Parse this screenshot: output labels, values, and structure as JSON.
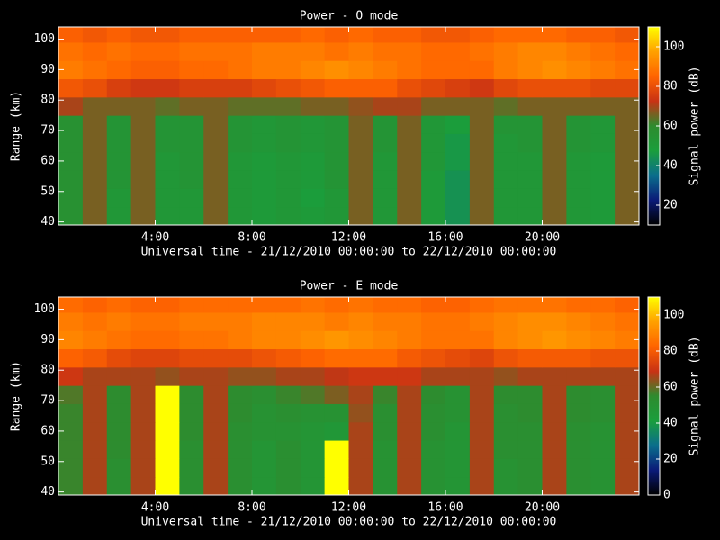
{
  "chart_data": [
    {
      "type": "heatmap",
      "title": "Power - O mode",
      "x_label": "Universal time - 21/12/2010 00:00:00 to 22/12/2010 00:00:00",
      "y_label": "Range (km)",
      "colorbar_label": "Signal power (dB)",
      "xbins": [
        0,
        1,
        2,
        3,
        4,
        5,
        6,
        7,
        8,
        9,
        10,
        11,
        12,
        13,
        14,
        15,
        16,
        17,
        18,
        19,
        20,
        21,
        22,
        23,
        24
      ],
      "ybins": [
        39,
        45,
        51,
        57,
        63,
        69,
        75,
        81,
        87,
        93,
        99,
        104
      ],
      "xlim": [
        0,
        24
      ],
      "ylim": [
        39,
        104
      ],
      "zlim": [
        10,
        110
      ],
      "xticks": [
        {
          "value": 4,
          "label": "4:00"
        },
        {
          "value": 8,
          "label": "8:00"
        },
        {
          "value": 12,
          "label": "12:00"
        },
        {
          "value": 16,
          "label": "16:00"
        },
        {
          "value": 20,
          "label": "20:00"
        }
      ],
      "yticks": [
        40,
        50,
        60,
        70,
        80,
        90,
        100
      ],
      "zticks": [
        20,
        40,
        60,
        80,
        100
      ],
      "colorscale": [
        "#000000",
        "#0a1a78",
        "#0a6e8c",
        "#1a9e3c",
        "#2e8b2e",
        "#c83214",
        "#ff6400",
        "#ffa000",
        "#ffff00"
      ],
      "z": [
        [
          56,
          66,
          52,
          66,
          52,
          52,
          66,
          52,
          50,
          52,
          50,
          52,
          66,
          52,
          66,
          50,
          44,
          66,
          52,
          52,
          66,
          52,
          50,
          66
        ],
        [
          56,
          66,
          52,
          66,
          52,
          52,
          66,
          52,
          50,
          52,
          48,
          52,
          66,
          52,
          66,
          50,
          44,
          66,
          52,
          52,
          66,
          52,
          50,
          66
        ],
        [
          56,
          66,
          54,
          66,
          52,
          54,
          66,
          52,
          50,
          52,
          50,
          54,
          66,
          52,
          66,
          50,
          44,
          66,
          52,
          52,
          66,
          52,
          50,
          66
        ],
        [
          56,
          66,
          54,
          66,
          52,
          54,
          66,
          52,
          50,
          52,
          50,
          54,
          66,
          52,
          66,
          52,
          46,
          66,
          52,
          52,
          66,
          52,
          50,
          66
        ],
        [
          56,
          66,
          54,
          66,
          54,
          54,
          66,
          54,
          52,
          54,
          52,
          54,
          66,
          54,
          66,
          52,
          46,
          66,
          52,
          54,
          66,
          54,
          52,
          66
        ],
        [
          56,
          66,
          54,
          66,
          54,
          54,
          66,
          54,
          52,
          54,
          52,
          54,
          66,
          54,
          66,
          52,
          48,
          66,
          54,
          54,
          66,
          54,
          52,
          66
        ],
        [
          70,
          66,
          66,
          66,
          64,
          66,
          66,
          64,
          64,
          64,
          66,
          66,
          68,
          70,
          70,
          66,
          66,
          66,
          64,
          66,
          66,
          66,
          66,
          66
        ],
        [
          82,
          80,
          76,
          74,
          74,
          76,
          76,
          76,
          78,
          80,
          82,
          84,
          84,
          84,
          80,
          78,
          76,
          74,
          78,
          80,
          80,
          80,
          78,
          78
        ],
        [
          90,
          88,
          86,
          84,
          84,
          86,
          86,
          88,
          90,
          90,
          92,
          94,
          92,
          90,
          88,
          86,
          86,
          86,
          90,
          92,
          94,
          92,
          90,
          88
        ],
        [
          88,
          86,
          88,
          86,
          86,
          88,
          88,
          88,
          90,
          90,
          90,
          88,
          90,
          88,
          88,
          86,
          86,
          88,
          90,
          92,
          92,
          90,
          88,
          86
        ],
        [
          84,
          82,
          84,
          82,
          82,
          84,
          84,
          84,
          84,
          84,
          86,
          84,
          86,
          84,
          84,
          82,
          82,
          84,
          86,
          86,
          86,
          84,
          84,
          82
        ]
      ]
    },
    {
      "type": "heatmap",
      "title": "Power - E mode",
      "x_label": "Universal time - 21/12/2010 00:00:00 to 22/12/2010 00:00:00",
      "y_label": "Range (km)",
      "colorbar_label": "Signal power (dB)",
      "xbins": [
        0,
        1,
        2,
        3,
        4,
        5,
        6,
        7,
        8,
        9,
        10,
        11,
        12,
        13,
        14,
        15,
        16,
        17,
        18,
        19,
        20,
        21,
        22,
        23,
        24
      ],
      "ybins": [
        39,
        45,
        51,
        57,
        63,
        69,
        75,
        81,
        87,
        93,
        99,
        104
      ],
      "xlim": [
        0,
        24
      ],
      "ylim": [
        39,
        104
      ],
      "zlim": [
        0,
        110
      ],
      "xticks": [
        {
          "value": 4,
          "label": "4:00"
        },
        {
          "value": 8,
          "label": "8:00"
        },
        {
          "value": 12,
          "label": "12:00"
        },
        {
          "value": 16,
          "label": "16:00"
        },
        {
          "value": 20,
          "label": "20:00"
        }
      ],
      "yticks": [
        40,
        50,
        60,
        70,
        80,
        90,
        100
      ],
      "zticks": [
        0,
        20,
        40,
        60,
        80,
        100
      ],
      "colorscale": [
        "#000000",
        "#0a1a78",
        "#0a6e8c",
        "#1a9e3c",
        "#2e8b2e",
        "#c83214",
        "#ff6400",
        "#ffa000",
        "#ffff00"
      ],
      "z": [
        [
          56,
          66,
          52,
          66,
          110,
          52,
          66,
          52,
          48,
          52,
          48,
          110,
          66,
          50,
          66,
          50,
          48,
          66,
          50,
          52,
          66,
          52,
          50,
          66
        ],
        [
          56,
          66,
          52,
          66,
          110,
          52,
          66,
          52,
          48,
          52,
          48,
          110,
          66,
          50,
          66,
          50,
          48,
          66,
          50,
          52,
          66,
          52,
          50,
          66
        ],
        [
          56,
          66,
          54,
          66,
          110,
          52,
          66,
          52,
          48,
          52,
          48,
          110,
          66,
          50,
          66,
          50,
          48,
          66,
          52,
          52,
          66,
          52,
          50,
          66
        ],
        [
          56,
          66,
          54,
          66,
          110,
          54,
          66,
          52,
          50,
          50,
          48,
          46,
          66,
          52,
          66,
          52,
          48,
          66,
          52,
          52,
          66,
          52,
          50,
          66
        ],
        [
          56,
          66,
          54,
          66,
          110,
          54,
          66,
          54,
          50,
          52,
          50,
          50,
          64,
          52,
          66,
          52,
          50,
          66,
          52,
          54,
          66,
          54,
          52,
          66
        ],
        [
          58,
          66,
          54,
          66,
          110,
          54,
          66,
          54,
          52,
          56,
          58,
          62,
          66,
          56,
          66,
          54,
          50,
          66,
          54,
          54,
          66,
          54,
          52,
          66
        ],
        [
          70,
          66,
          66,
          66,
          64,
          66,
          66,
          64,
          64,
          66,
          66,
          68,
          70,
          70,
          70,
          66,
          66,
          66,
          64,
          66,
          66,
          66,
          66,
          66
        ],
        [
          82,
          80,
          76,
          74,
          74,
          76,
          76,
          76,
          78,
          80,
          82,
          84,
          84,
          84,
          80,
          78,
          76,
          74,
          78,
          80,
          80,
          80,
          78,
          78
        ],
        [
          90,
          88,
          86,
          84,
          84,
          86,
          86,
          88,
          90,
          90,
          92,
          94,
          92,
          90,
          88,
          86,
          86,
          86,
          90,
          92,
          94,
          92,
          90,
          88
        ],
        [
          88,
          86,
          88,
          86,
          86,
          88,
          88,
          88,
          90,
          90,
          90,
          88,
          90,
          88,
          88,
          86,
          86,
          88,
          90,
          92,
          92,
          90,
          88,
          86
        ],
        [
          84,
          82,
          84,
          82,
          82,
          84,
          84,
          84,
          84,
          84,
          86,
          84,
          86,
          84,
          84,
          82,
          82,
          84,
          86,
          86,
          86,
          84,
          84,
          82
        ]
      ]
    }
  ]
}
